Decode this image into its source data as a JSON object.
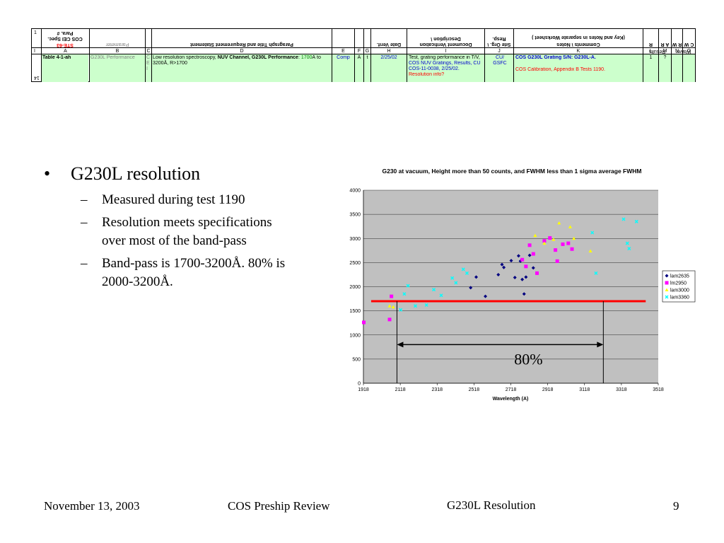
{
  "sheet": {
    "header_flipped": {
      "col1": "COS CEI Spec. Para. #",
      "col1_red": "STE-63",
      "col2": "Parameter",
      "col3": "Paragraph Title and Requirement Statement",
      "col_date": "Date Verif.",
      "col_doc": "Document Verification Description \\",
      "col_site": "Site Org. \\ Resp.",
      "col_comments": "Comments \\ Notes",
      "col_comments2": "(Key and Notes in separate Worksheet )",
      "col_l": "R",
      "col_m": "A R",
      "col_n": "R W",
      "col_o": "C W",
      "results": "Results",
      "waiver": "Waiver"
    },
    "row_num_top": "1",
    "row_num_mid": "I",
    "row_num_bottom": "14",
    "col_letters": [
      "A",
      "B",
      "C",
      "D",
      "E",
      "F",
      "G",
      "H",
      "I",
      "J",
      "K",
      "L",
      "M",
      "N",
      "O"
    ],
    "row": {
      "a": "Table 4-1-ah",
      "b": "G230L Performance",
      "c": "C E I",
      "d_pre": "Low resolution spectroscopy, ",
      "d_bold": "NUV Channel, G230L Performance",
      "d_mid": ": ",
      "d_green": "1700",
      "d_post": "Å to 3200Å, R>1700",
      "e": "Comp",
      "f": "A",
      "g": "t",
      "h": "2/25/02",
      "i1": "Test, grating performance in T/V,",
      "i2": "COS NUV Gratings, Results, CU COS-11-0038, 2/25/02.",
      "i3": "Resolution info?",
      "j": "CU/ GSFC",
      "k1": "COS G230L Grating S/N: G230L-A.",
      "k2": "COS Calibration, Appendix B Tests 1190.",
      "l": "1",
      "m": "?"
    }
  },
  "bullets": {
    "main": "G230L resolution",
    "main_marker": "•",
    "dash": "–",
    "sub": [
      "Measured during test 1190",
      "Resolution meets specifications over most of the band-pass",
      "Band-pass is 1700-3200Å. 80% is 2000-3200Å."
    ]
  },
  "chart_data": {
    "type": "scatter",
    "title": "G230 at vacuum, Height more than 50 counts, and FWHM less than 1 sigma average FWHM",
    "xlabel": "Wavelength (A)",
    "ylabel": "",
    "xlim": [
      1918,
      3518
    ],
    "ylim": [
      0,
      4000
    ],
    "xticks": [
      1918,
      2118,
      2318,
      2518,
      2718,
      2918,
      3118,
      3318,
      3518
    ],
    "yticks": [
      0,
      500,
      1000,
      1500,
      2000,
      2500,
      3000,
      3500,
      4000
    ],
    "grid": true,
    "legend_position": "right",
    "series": [
      {
        "name": "lam2635",
        "color": "#000080",
        "marker": "diamond",
        "points": [
          [
            2500,
            1980
          ],
          [
            2530,
            2200
          ],
          [
            2580,
            1800
          ],
          [
            2650,
            2250
          ],
          [
            2670,
            2460
          ],
          [
            2680,
            2400
          ],
          [
            2720,
            2540
          ],
          [
            2740,
            2190
          ],
          [
            2760,
            2640
          ],
          [
            2770,
            2530
          ],
          [
            2780,
            2150
          ],
          [
            2790,
            1850
          ],
          [
            2800,
            2200
          ],
          [
            2820,
            2650
          ],
          [
            2840,
            2390
          ],
          [
            2860,
            2280
          ]
        ]
      },
      {
        "name": "lm2950",
        "color": "#ff00ff",
        "marker": "square",
        "points": [
          [
            1920,
            1260
          ],
          [
            2060,
            1320
          ],
          [
            2070,
            1800
          ],
          [
            2780,
            2560
          ],
          [
            2800,
            2420
          ],
          [
            2820,
            2860
          ],
          [
            2840,
            2680
          ],
          [
            2860,
            2280
          ],
          [
            2900,
            2950
          ],
          [
            2930,
            3010
          ],
          [
            2960,
            2760
          ],
          [
            2970,
            2530
          ],
          [
            3000,
            2880
          ],
          [
            3030,
            2900
          ],
          [
            3050,
            2780
          ]
        ]
      },
      {
        "name": "lam3000",
        "color": "#ffff00",
        "marker": "triangle",
        "points": [
          [
            2060,
            1600
          ],
          [
            2080,
            1580
          ],
          [
            2850,
            3060
          ],
          [
            2900,
            2900
          ],
          [
            2950,
            2980
          ],
          [
            2980,
            3320
          ],
          [
            3040,
            3240
          ],
          [
            3060,
            3000
          ],
          [
            3150,
            2740
          ]
        ]
      },
      {
        "name": "lam3360",
        "color": "#00ffff",
        "marker": "x",
        "points": [
          [
            2120,
            1520
          ],
          [
            2140,
            1850
          ],
          [
            2160,
            2020
          ],
          [
            2200,
            1600
          ],
          [
            2260,
            1620
          ],
          [
            2300,
            1940
          ],
          [
            2340,
            1820
          ],
          [
            2400,
            2180
          ],
          [
            2420,
            2080
          ],
          [
            2460,
            2360
          ],
          [
            2480,
            2280
          ],
          [
            3160,
            3120
          ],
          [
            3180,
            2280
          ],
          [
            3330,
            3400
          ],
          [
            3350,
            2900
          ],
          [
            3360,
            2790
          ],
          [
            3400,
            3350
          ]
        ]
      }
    ],
    "threshold_line": {
      "y": 1700,
      "x_from": 1960,
      "x_to": 3450,
      "color": "#ff0000"
    },
    "range_arrow": {
      "x_from": 2100,
      "x_to": 3220,
      "y_level": 800,
      "label": "80%",
      "drop_from_y": 1700
    }
  },
  "footer": {
    "date": "November 13, 2003",
    "event": "COS Preship Review",
    "topic": "G230L Resolution",
    "page": "9"
  }
}
